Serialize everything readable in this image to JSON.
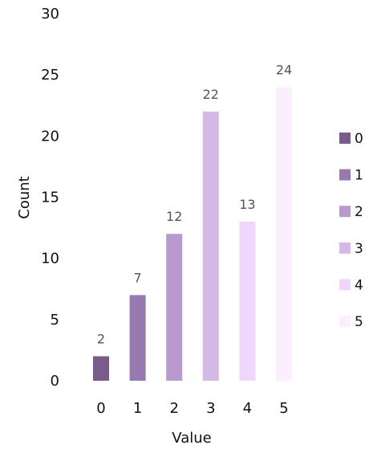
{
  "chart_data": {
    "type": "bar",
    "title": "",
    "xlabel": "Value",
    "ylabel": "Count",
    "categories": [
      "0",
      "1",
      "2",
      "3",
      "4",
      "5"
    ],
    "values": [
      2,
      7,
      12,
      22,
      13,
      24
    ],
    "data_labels": [
      "2",
      "7",
      "12",
      "22",
      "13",
      "24"
    ],
    "ylim": [
      0,
      30
    ],
    "yticks": [
      "0",
      "5",
      "10",
      "15",
      "20",
      "25",
      "30"
    ],
    "grid": false,
    "legend": {
      "placement": "right",
      "entries": [
        "0",
        "1",
        "2",
        "3",
        "4",
        "5"
      ]
    },
    "colors": [
      "#7b5a8c",
      "#977ab0",
      "#b89acd",
      "#d4b8e6",
      "#efd6fb",
      "#fbeffd"
    ]
  }
}
